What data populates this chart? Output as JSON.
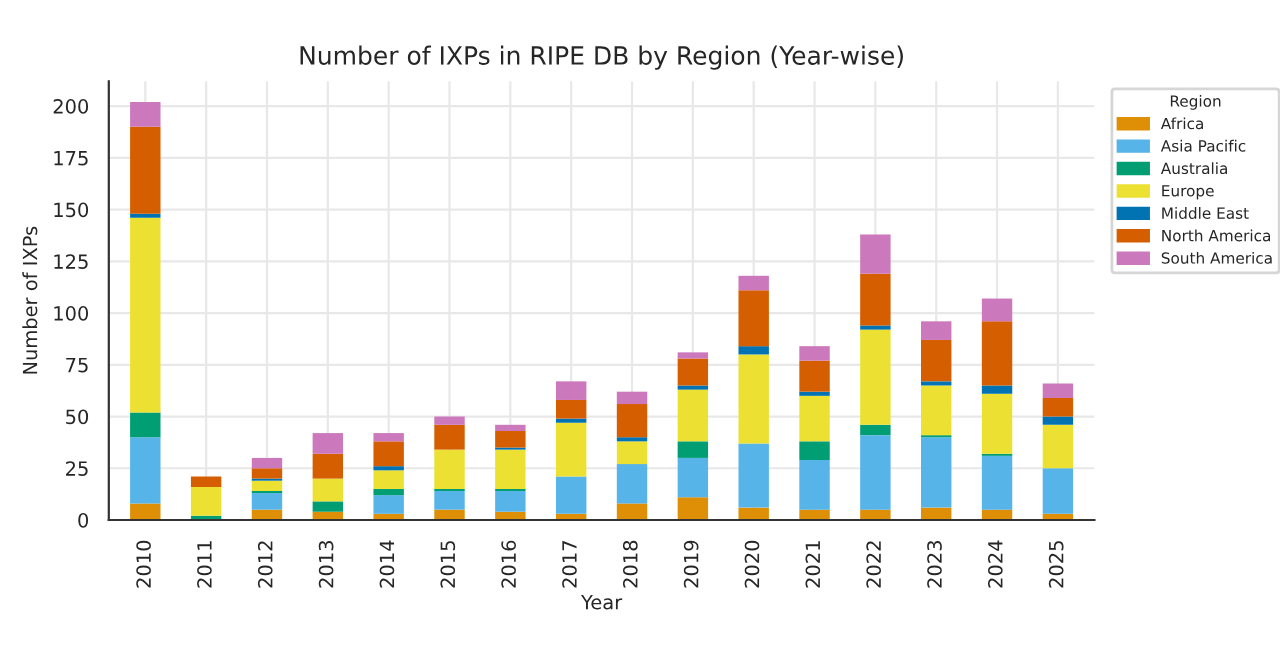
{
  "chart_data": {
    "type": "bar",
    "title": "Number of IXPs in RIPE DB by Region (Year-wise)",
    "xlabel": "Year",
    "ylabel": "Number of IXPs",
    "legend_title": "Region",
    "categories": [
      "2010",
      "2011",
      "2012",
      "2013",
      "2014",
      "2015",
      "2016",
      "2017",
      "2018",
      "2019",
      "2020",
      "2021",
      "2022",
      "2023",
      "2024",
      "2025"
    ],
    "stacked": true,
    "series": [
      {
        "name": "Africa",
        "color": "#de8f05",
        "values": [
          8,
          null,
          5,
          4,
          3,
          5,
          4,
          3,
          8,
          11,
          6,
          5,
          5,
          6,
          5,
          3
        ]
      },
      {
        "name": "Asia Pacific",
        "color": "#56b4e9",
        "values": [
          32,
          0,
          8,
          0,
          9,
          9,
          10,
          18,
          19,
          19,
          31,
          24,
          36,
          34,
          26,
          22
        ]
      },
      {
        "name": "Australia",
        "color": "#029e73",
        "values": [
          12,
          2,
          1,
          5,
          3,
          1,
          1,
          0,
          0,
          8,
          0,
          9,
          5,
          1,
          1,
          0
        ]
      },
      {
        "name": "Europe",
        "color": "#ece133",
        "values": [
          94,
          14,
          5,
          11,
          9,
          19,
          19,
          26,
          11,
          25,
          43,
          22,
          46,
          24,
          29,
          21
        ]
      },
      {
        "name": "Middle East",
        "color": "#0173b2",
        "values": [
          2,
          0,
          1,
          0,
          2,
          0,
          1,
          2,
          2,
          2,
          4,
          2,
          2,
          2,
          4,
          4
        ]
      },
      {
        "name": "North America",
        "color": "#d55e00",
        "values": [
          42,
          5,
          5,
          12,
          12,
          12,
          8,
          9,
          16,
          13,
          27,
          15,
          25,
          20,
          31,
          9
        ]
      },
      {
        "name": "South America",
        "color": "#cc78bc",
        "values": [
          12,
          0,
          5,
          10,
          4,
          4,
          3,
          9,
          6,
          3,
          7,
          7,
          19,
          9,
          11,
          7
        ]
      }
    ],
    "ylim": [
      0,
      212
    ],
    "yticks": [
      0,
      25,
      50,
      75,
      100,
      125,
      150,
      175,
      200
    ],
    "grid": true,
    "legend": "top right"
  }
}
